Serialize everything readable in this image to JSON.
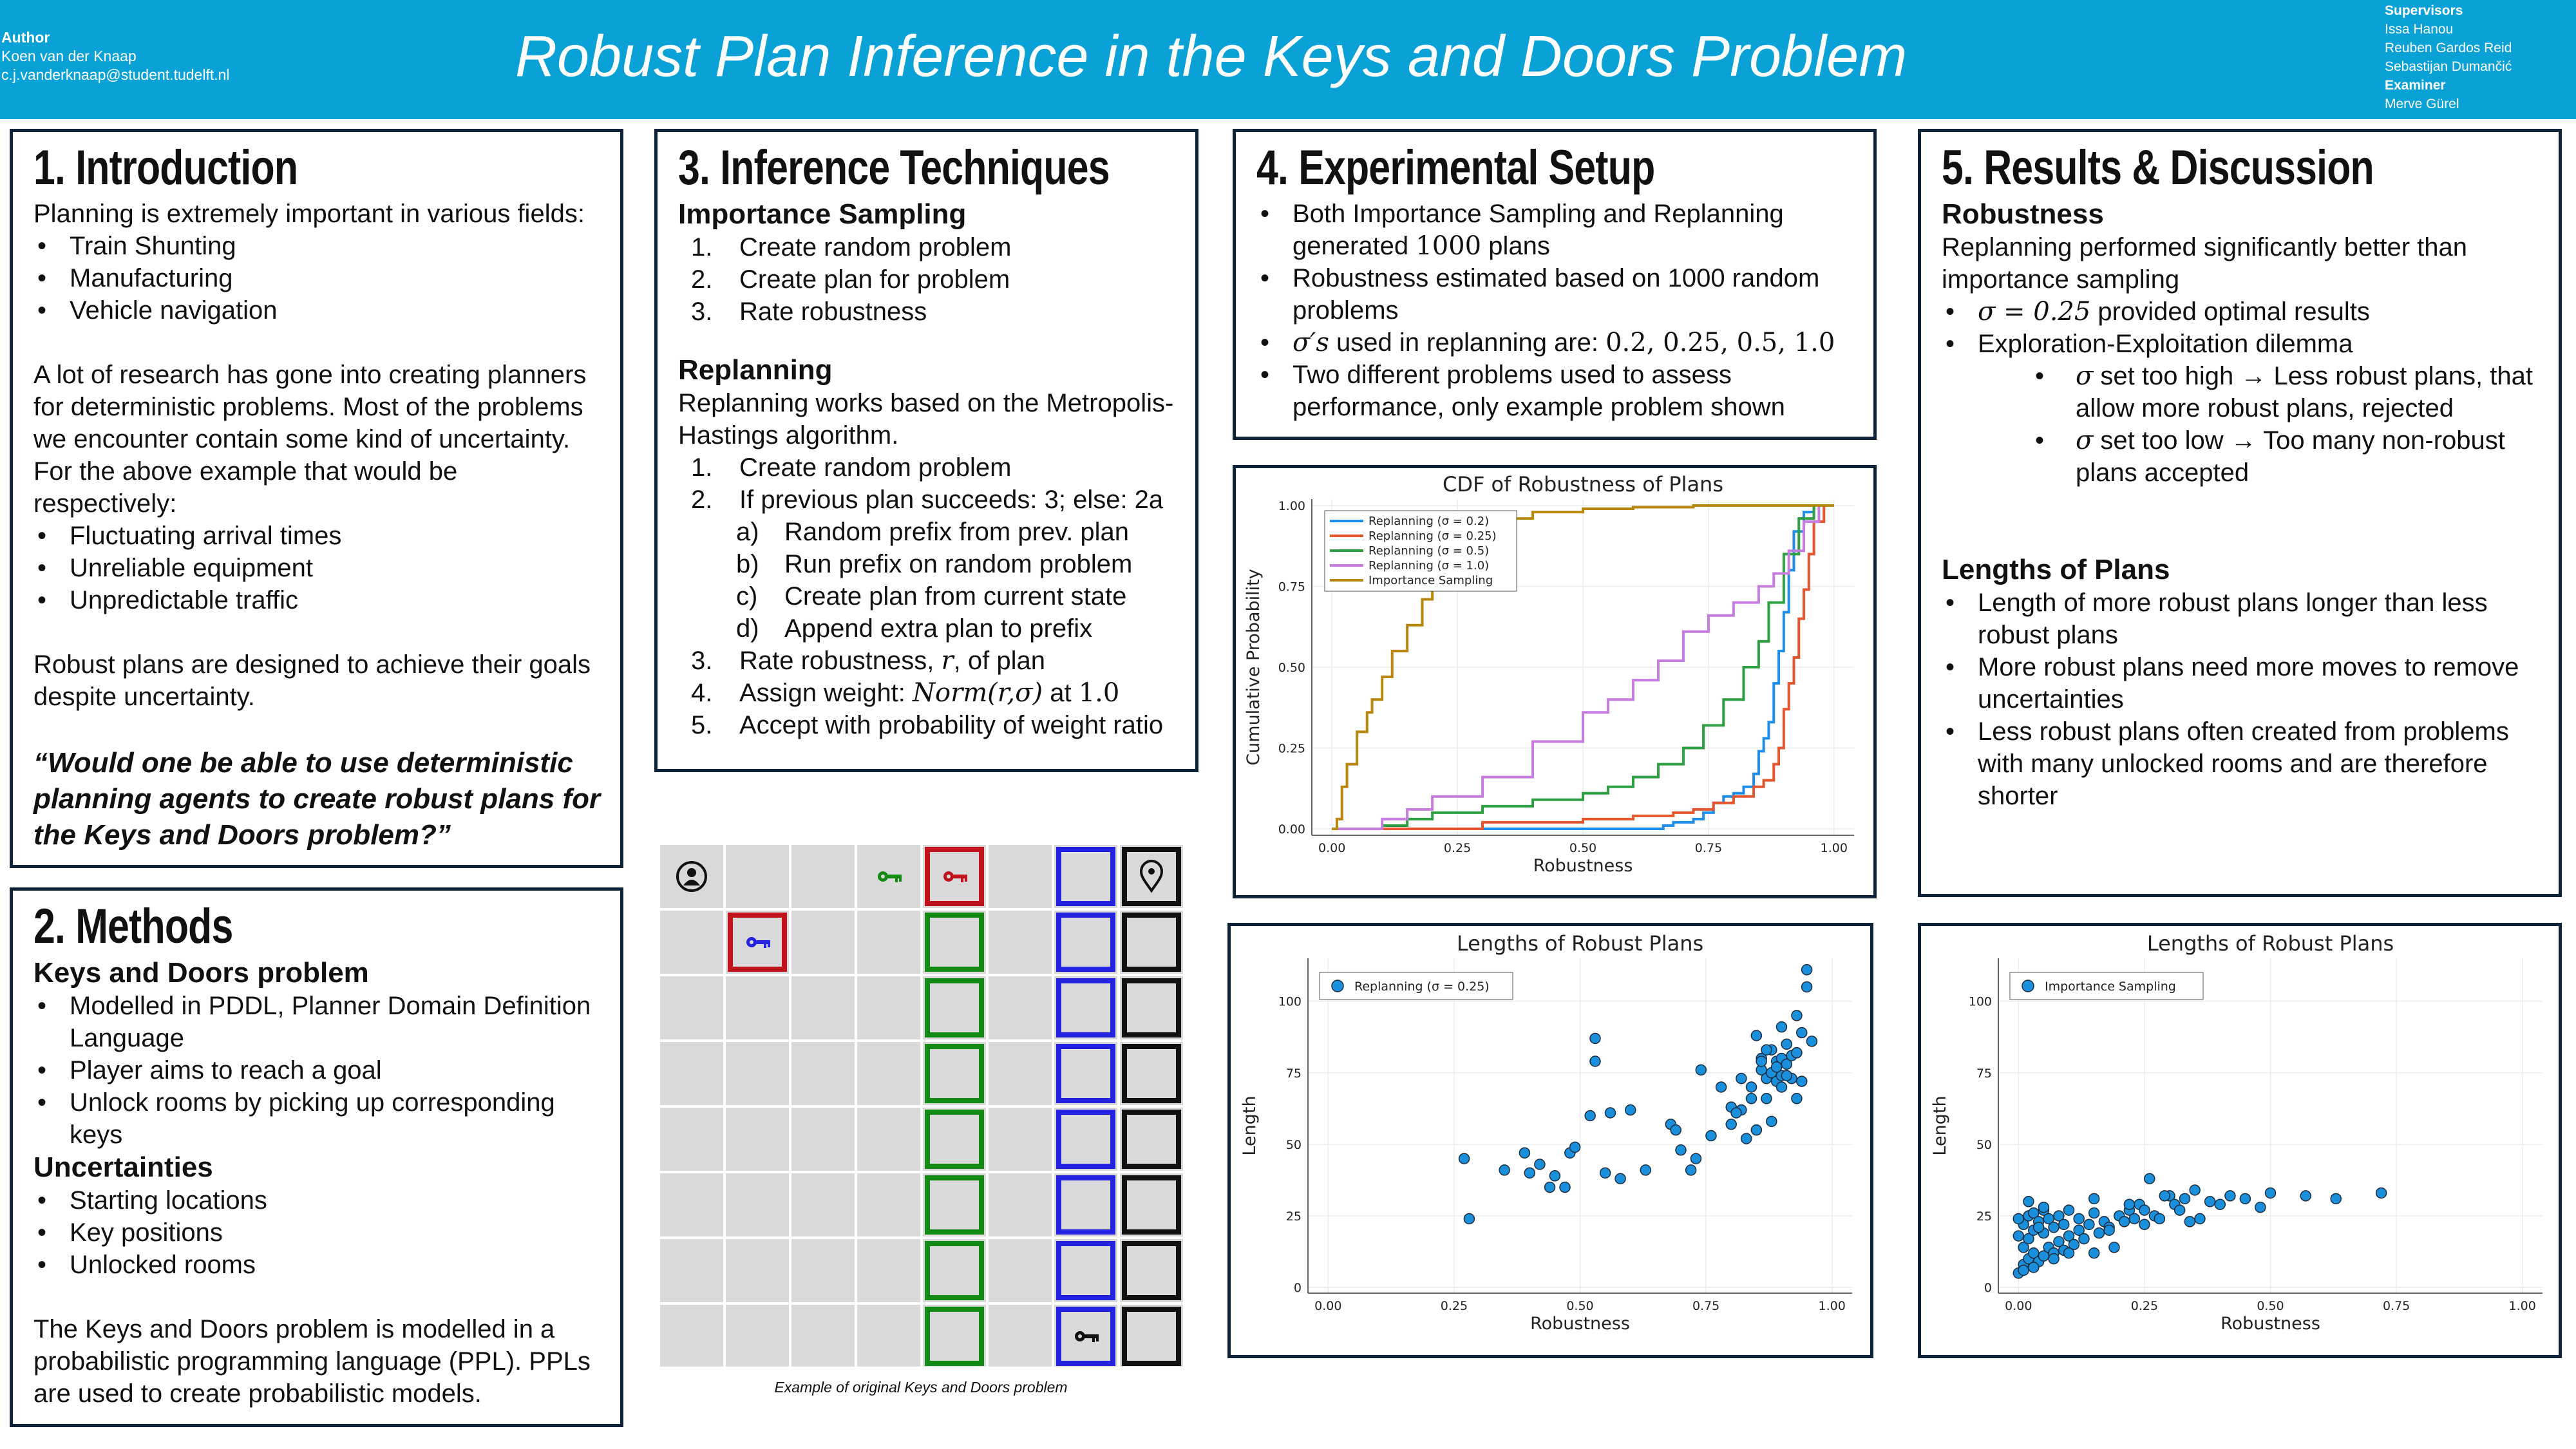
{
  "header": {
    "author_heading": "Author",
    "author_name": "Koen van der Knaap",
    "author_email": "c.j.vanderknaap@student.tudelft.nl",
    "title": "Robust Plan Inference in the Keys and Doors Problem",
    "supervisors_heading": "Supervisors",
    "supervisors": [
      "Issa Hanou",
      "Reuben Gardos Reid",
      "Sebastijan Dumančić"
    ],
    "examiner_heading": "Examiner",
    "examiner": "Merve Gürel"
  },
  "intro": {
    "heading": "1. Introduction",
    "lead": "Planning is extremely important in various fields:",
    "fields": [
      "Train Shunting",
      "Manufacturing",
      "Vehicle navigation"
    ],
    "para": "A lot of research has gone into creating planners for deterministic problems. Most of the problems we encounter contain some kind of uncertainty. For the above example that would be respectively:",
    "uncertainties": [
      "Fluctuating arrival times",
      "Unreliable equipment",
      "Unpredictable traffic"
    ],
    "robust": "Robust plans are designed to achieve their goals despite uncertainty.",
    "question": "“Would one be able to use deterministic planning agents to create robust plans for the Keys and Doors problem?”"
  },
  "methods": {
    "heading": "2. Methods",
    "sub1": "Keys and Doors problem",
    "items1": [
      "Modelled in PDDL, Planner Domain Definition Language",
      "Player aims to reach a goal",
      "Unlock rooms by picking up corresponding keys"
    ],
    "sub2": "Uncertainties",
    "items2": [
      "Starting locations",
      "Key positions",
      "Unlocked rooms"
    ],
    "para": "The Keys and Doors problem is modelled in a probabilistic programming language (PPL). PPLs are used to create probabilistic models."
  },
  "inference": {
    "heading": "3. Inference Techniques",
    "sub1": "Importance Sampling",
    "is_steps": [
      "Create random problem",
      "Create plan for problem",
      "Rate robustness"
    ],
    "sub2": "Replanning",
    "rp_intro": "Replanning works based on the Metropolis-Hastings algorithm.",
    "rp1": "Create random problem",
    "rp2": "If previous plan succeeds: 3; else: 2a",
    "rp2_sub": [
      "Random prefix from prev. plan",
      "Run prefix on random problem",
      "Create plan from current state",
      "Append extra plan to prefix"
    ],
    "rp3_text": "Rate robustness, ",
    "rp3_var": "r",
    "rp3_tail": ", of plan",
    "rp4_text": "Assign weight: ",
    "rp4_math": "Norm(r,σ)",
    "rp4_mid": " at ",
    "rp4_num": "1.0",
    "rp5": "Accept with probability of weight ratio"
  },
  "grid": {
    "caption": "Example of original Keys and Doors problem",
    "colors": {
      "red": "#c0141c",
      "green": "#138a15",
      "blue": "#2323e0",
      "black": "#111111",
      "cell": "#d9d9d9"
    }
  },
  "setup": {
    "heading": "4. Experimental Setup",
    "b1_text": "Both Importance Sampling and Replanning generated ",
    "b1_num": "1000",
    "b1_tail": " plans",
    "b2": "Robustness estimated based on 1000 random problems",
    "b3_var": "σ′s",
    "b3_text": " used  in replanning are: ",
    "b3_vals": "0.2, 0.25, 0.5, 1.0",
    "b4": "Two different problems used to assess performance, only example problem shown"
  },
  "results": {
    "heading": "5. Results & Discussion",
    "sub1": "Robustness",
    "p1": "Replanning performed significantly better than importance sampling",
    "b1_math": "σ = 0.25",
    "b1_text": " provided optimal results",
    "b2": "Exploration-Exploitation dilemma",
    "s1_var": "σ",
    "s1_text": " set too high → Less robust plans, that allow more robust plans, rejected",
    "s2_var": "σ",
    "s2_text": " set too low → Too many non-robust plans accepted",
    "sub2": "Lengths of Plans",
    "items": [
      "Length of more robust plans longer than less robust plans",
      "More robust plans need more moves to remove uncertainties",
      "Less robust plans often created from problems with many unlocked rooms and are therefore shorter"
    ]
  },
  "chart_data": [
    {
      "type": "line",
      "title": "CDF of Robustness of Plans",
      "xlabel": "Robustness",
      "ylabel": "Cumulative Probability",
      "xlim": [
        -0.04,
        1.04
      ],
      "ylim": [
        -0.02,
        1.02
      ],
      "xticks": [
        "0.00",
        "0.25",
        "0.50",
        "0.75",
        "1.00"
      ],
      "yticks": [
        "0.00",
        "0.25",
        "0.50",
        "0.75",
        "1.00"
      ],
      "legend": "top-left",
      "series": [
        {
          "name": "Replanning (σ = 0.2)",
          "color": "#1f8ee8",
          "x": [
            0.0,
            0.62,
            0.66,
            0.68,
            0.72,
            0.74,
            0.76,
            0.78,
            0.8,
            0.82,
            0.84,
            0.85,
            0.86,
            0.87,
            0.88,
            0.89,
            0.9,
            0.91,
            0.92,
            0.94,
            0.96,
            1.0
          ],
          "y": [
            0.0,
            0.0,
            0.01,
            0.02,
            0.03,
            0.05,
            0.08,
            0.1,
            0.11,
            0.13,
            0.17,
            0.24,
            0.28,
            0.33,
            0.45,
            0.55,
            0.67,
            0.8,
            0.92,
            0.98,
            1.0,
            1.0
          ]
        },
        {
          "name": "Replanning (σ = 0.25)",
          "color": "#e4572e",
          "x": [
            0.0,
            0.3,
            0.5,
            0.6,
            0.68,
            0.72,
            0.76,
            0.8,
            0.84,
            0.86,
            0.88,
            0.89,
            0.9,
            0.91,
            0.92,
            0.93,
            0.94,
            0.95,
            0.96,
            0.98,
            1.0
          ],
          "y": [
            0.0,
            0.02,
            0.03,
            0.04,
            0.05,
            0.06,
            0.08,
            0.1,
            0.13,
            0.15,
            0.2,
            0.25,
            0.37,
            0.45,
            0.53,
            0.65,
            0.74,
            0.85,
            0.95,
            1.0,
            1.0
          ]
        },
        {
          "name": "Replanning (σ = 0.5)",
          "color": "#2ea043",
          "x": [
            0.0,
            0.1,
            0.15,
            0.2,
            0.3,
            0.4,
            0.5,
            0.55,
            0.6,
            0.65,
            0.7,
            0.74,
            0.78,
            0.82,
            0.85,
            0.87,
            0.9,
            0.93,
            0.96,
            1.0
          ],
          "y": [
            0.0,
            0.01,
            0.03,
            0.05,
            0.07,
            0.09,
            0.11,
            0.13,
            0.16,
            0.2,
            0.25,
            0.32,
            0.4,
            0.5,
            0.58,
            0.7,
            0.85,
            0.96,
            1.0,
            1.0
          ]
        },
        {
          "name": "Replanning (σ = 1.0)",
          "color": "#c77ddf",
          "x": [
            0.0,
            0.1,
            0.15,
            0.2,
            0.3,
            0.4,
            0.5,
            0.55,
            0.6,
            0.65,
            0.7,
            0.75,
            0.8,
            0.85,
            0.88,
            0.91,
            0.94,
            0.97,
            1.0
          ],
          "y": [
            0.0,
            0.03,
            0.06,
            0.1,
            0.16,
            0.27,
            0.36,
            0.4,
            0.46,
            0.52,
            0.61,
            0.66,
            0.7,
            0.75,
            0.79,
            0.86,
            0.95,
            1.0,
            1.0
          ]
        },
        {
          "name": "Importance Sampling",
          "color": "#b8870b",
          "x": [
            0.0,
            0.01,
            0.02,
            0.03,
            0.05,
            0.07,
            0.08,
            0.1,
            0.12,
            0.15,
            0.18,
            0.2,
            0.22,
            0.25,
            0.3,
            0.35,
            0.4,
            0.5,
            0.6,
            0.72,
            0.9,
            1.0
          ],
          "y": [
            0.0,
            0.03,
            0.13,
            0.2,
            0.3,
            0.36,
            0.4,
            0.47,
            0.55,
            0.63,
            0.71,
            0.8,
            0.86,
            0.9,
            0.94,
            0.96,
            0.98,
            0.99,
            0.995,
            1.0,
            1.0,
            1.0
          ]
        }
      ]
    },
    {
      "type": "scatter",
      "title": "Lengths of Robust Plans",
      "xlabel": "Robustness",
      "ylabel": "Length",
      "xlim": [
        -0.04,
        1.04
      ],
      "ylim": [
        -2,
        115
      ],
      "xticks": [
        "0.00",
        "0.25",
        "0.50",
        "0.75",
        "1.00"
      ],
      "yticks": [
        "0",
        "25",
        "50",
        "75",
        "100"
      ],
      "legend": "top-left",
      "series": [
        {
          "name": "Replanning (σ = 0.25)",
          "color": "#1a8fdc",
          "x": [
            0.27,
            0.28,
            0.35,
            0.39,
            0.4,
            0.42,
            0.44,
            0.45,
            0.47,
            0.48,
            0.49,
            0.52,
            0.53,
            0.53,
            0.55,
            0.56,
            0.58,
            0.6,
            0.63,
            0.68,
            0.69,
            0.7,
            0.72,
            0.73,
            0.74,
            0.76,
            0.78,
            0.8,
            0.8,
            0.82,
            0.83,
            0.84,
            0.85,
            0.85,
            0.86,
            0.86,
            0.87,
            0.87,
            0.88,
            0.88,
            0.89,
            0.89,
            0.9,
            0.9,
            0.9,
            0.91,
            0.91,
            0.92,
            0.92,
            0.93,
            0.93,
            0.94,
            0.94,
            0.95,
            0.95,
            0.96,
            0.88,
            0.84,
            0.9,
            0.93,
            0.87,
            0.89,
            0.91,
            0.86,
            0.82,
            0.81
          ],
          "y": [
            45,
            24,
            41,
            47,
            40,
            43,
            35,
            39,
            35,
            47,
            49,
            60,
            87,
            79,
            40,
            61,
            38,
            62,
            41,
            57,
            55,
            48,
            41,
            45,
            76,
            53,
            70,
            63,
            57,
            73,
            52,
            70,
            55,
            88,
            76,
            80,
            73,
            66,
            75,
            83,
            72,
            79,
            70,
            80,
            74,
            85,
            78,
            81,
            73,
            95,
            82,
            89,
            72,
            111,
            105,
            86,
            58,
            66,
            91,
            66,
            83,
            77,
            74,
            79,
            62,
            61
          ]
        }
      ]
    },
    {
      "type": "scatter",
      "title": "Lengths of Robust Plans",
      "xlabel": "Robustness",
      "ylabel": "Length",
      "xlim": [
        -0.04,
        1.04
      ],
      "ylim": [
        -2,
        115
      ],
      "xticks": [
        "0.00",
        "0.25",
        "0.50",
        "0.75",
        "1.00"
      ],
      "yticks": [
        "0",
        "25",
        "50",
        "75",
        "100"
      ],
      "legend": "top-left",
      "series": [
        {
          "name": "Importance Sampling",
          "color": "#1a8fdc",
          "x": [
            0.0,
            0.0,
            0.01,
            0.01,
            0.01,
            0.02,
            0.02,
            0.02,
            0.03,
            0.03,
            0.03,
            0.04,
            0.04,
            0.05,
            0.05,
            0.05,
            0.06,
            0.06,
            0.07,
            0.07,
            0.08,
            0.08,
            0.09,
            0.09,
            0.1,
            0.1,
            0.11,
            0.12,
            0.12,
            0.13,
            0.14,
            0.15,
            0.15,
            0.16,
            0.17,
            0.18,
            0.19,
            0.2,
            0.21,
            0.22,
            0.23,
            0.24,
            0.25,
            0.26,
            0.27,
            0.28,
            0.3,
            0.31,
            0.32,
            0.33,
            0.35,
            0.36,
            0.38,
            0.4,
            0.42,
            0.45,
            0.48,
            0.5,
            0.57,
            0.63,
            0.72,
            0.25,
            0.22,
            0.15,
            0.1,
            0.05,
            0.03,
            0.02,
            0.01,
            0.0,
            0.04,
            0.07,
            0.18,
            0.29,
            0.34
          ],
          "y": [
            5,
            18,
            8,
            14,
            22,
            10,
            17,
            25,
            12,
            20,
            26,
            9,
            23,
            11,
            19,
            27,
            14,
            24,
            12,
            21,
            16,
            25,
            13,
            22,
            18,
            27,
            15,
            20,
            24,
            17,
            22,
            12,
            26,
            19,
            23,
            21,
            14,
            25,
            23,
            27,
            24,
            29,
            22,
            38,
            25,
            24,
            32,
            29,
            27,
            31,
            34,
            24,
            30,
            29,
            32,
            31,
            28,
            33,
            32,
            31,
            33,
            27,
            29,
            31,
            12,
            28,
            7,
            30,
            6,
            24,
            21,
            10,
            20,
            32,
            23
          ]
        }
      ]
    }
  ]
}
